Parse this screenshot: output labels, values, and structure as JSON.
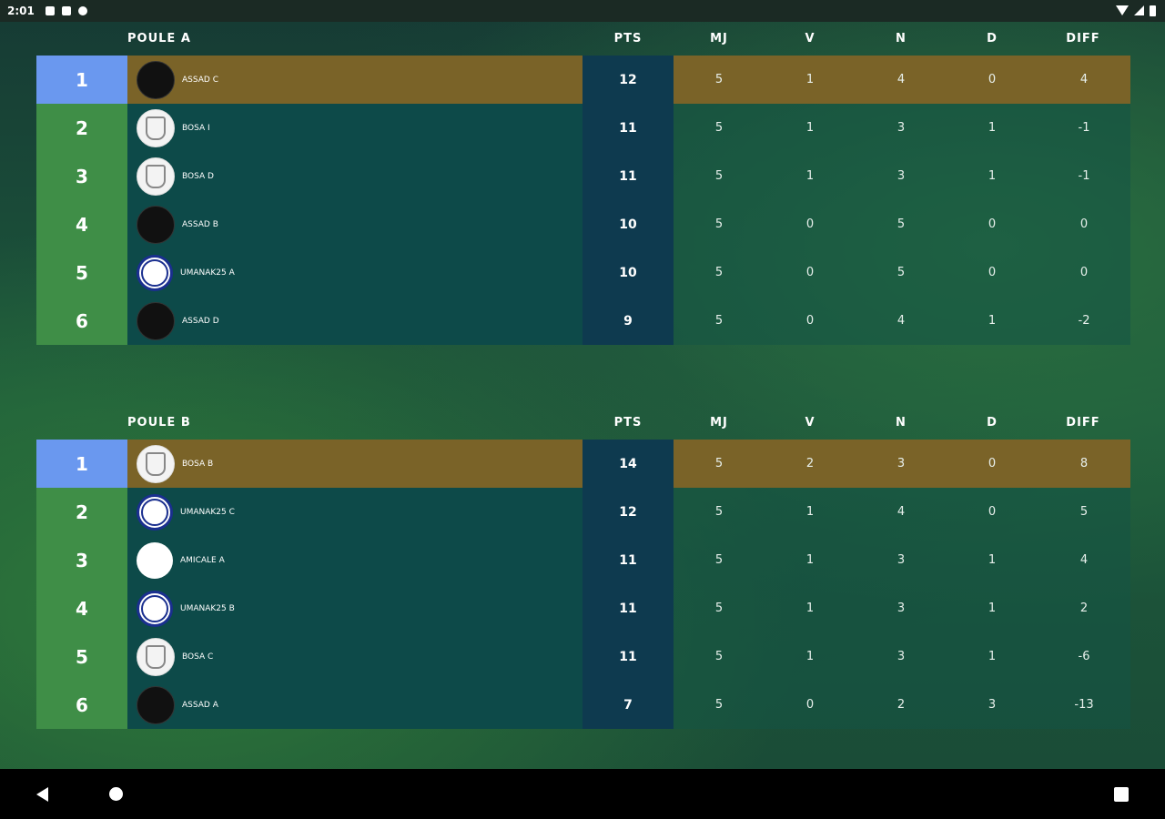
{
  "status_bar": {
    "time": "2:01"
  },
  "columns": {
    "pts": "PTS",
    "mj": "MJ",
    "v": "V",
    "n": "N",
    "d": "D",
    "diff": "DIFF"
  },
  "poules": [
    {
      "title": "POULE A",
      "rows": [
        {
          "rank": "1",
          "team": "ASSAD C",
          "logo": "asad-logo",
          "pts": "12",
          "mj": "5",
          "v": "1",
          "n": "4",
          "d": "0",
          "diff": "4"
        },
        {
          "rank": "2",
          "team": "BOSA I",
          "logo": "bosa-logo",
          "pts": "11",
          "mj": "5",
          "v": "1",
          "n": "3",
          "d": "1",
          "diff": "-1"
        },
        {
          "rank": "3",
          "team": "BOSA D",
          "logo": "bosa-logo",
          "pts": "11",
          "mj": "5",
          "v": "1",
          "n": "3",
          "d": "1",
          "diff": "-1"
        },
        {
          "rank": "4",
          "team": "ASSAD B",
          "logo": "asad-logo",
          "pts": "10",
          "mj": "5",
          "v": "0",
          "n": "5",
          "d": "0",
          "diff": "0"
        },
        {
          "rank": "5",
          "team": "UMANAK25 A",
          "logo": "inter-logo",
          "pts": "10",
          "mj": "5",
          "v": "0",
          "n": "5",
          "d": "0",
          "diff": "0"
        },
        {
          "rank": "6",
          "team": "ASSAD D",
          "logo": "asad-logo",
          "pts": "9",
          "mj": "5",
          "v": "0",
          "n": "4",
          "d": "1",
          "diff": "-2"
        }
      ]
    },
    {
      "title": "POULE B",
      "rows": [
        {
          "rank": "1",
          "team": "BOSA B",
          "logo": "bosa-logo",
          "pts": "14",
          "mj": "5",
          "v": "2",
          "n": "3",
          "d": "0",
          "diff": "8"
        },
        {
          "rank": "2",
          "team": "UMANAK25 C",
          "logo": "inter-logo",
          "pts": "12",
          "mj": "5",
          "v": "1",
          "n": "4",
          "d": "0",
          "diff": "5"
        },
        {
          "rank": "3",
          "team": "AMICALE A",
          "logo": "juve-logo",
          "pts": "11",
          "mj": "5",
          "v": "1",
          "n": "3",
          "d": "1",
          "diff": "4"
        },
        {
          "rank": "4",
          "team": "UMANAK25 B",
          "logo": "inter-logo",
          "pts": "11",
          "mj": "5",
          "v": "1",
          "n": "3",
          "d": "1",
          "diff": "2"
        },
        {
          "rank": "5",
          "team": "BOSA C",
          "logo": "bosa-logo",
          "pts": "11",
          "mj": "5",
          "v": "1",
          "n": "3",
          "d": "1",
          "diff": "-6"
        },
        {
          "rank": "6",
          "team": "ASSAD A",
          "logo": "asad-logo",
          "pts": "7",
          "mj": "5",
          "v": "0",
          "n": "2",
          "d": "3",
          "diff": "-13"
        }
      ]
    }
  ],
  "colors": {
    "first_place_rank": "#6a98ef",
    "first_place_row": "#7a6328",
    "rank_cell": "#3f8e47",
    "team_cell": "#0d4a49",
    "pts_cell": "#0e3a4f"
  }
}
